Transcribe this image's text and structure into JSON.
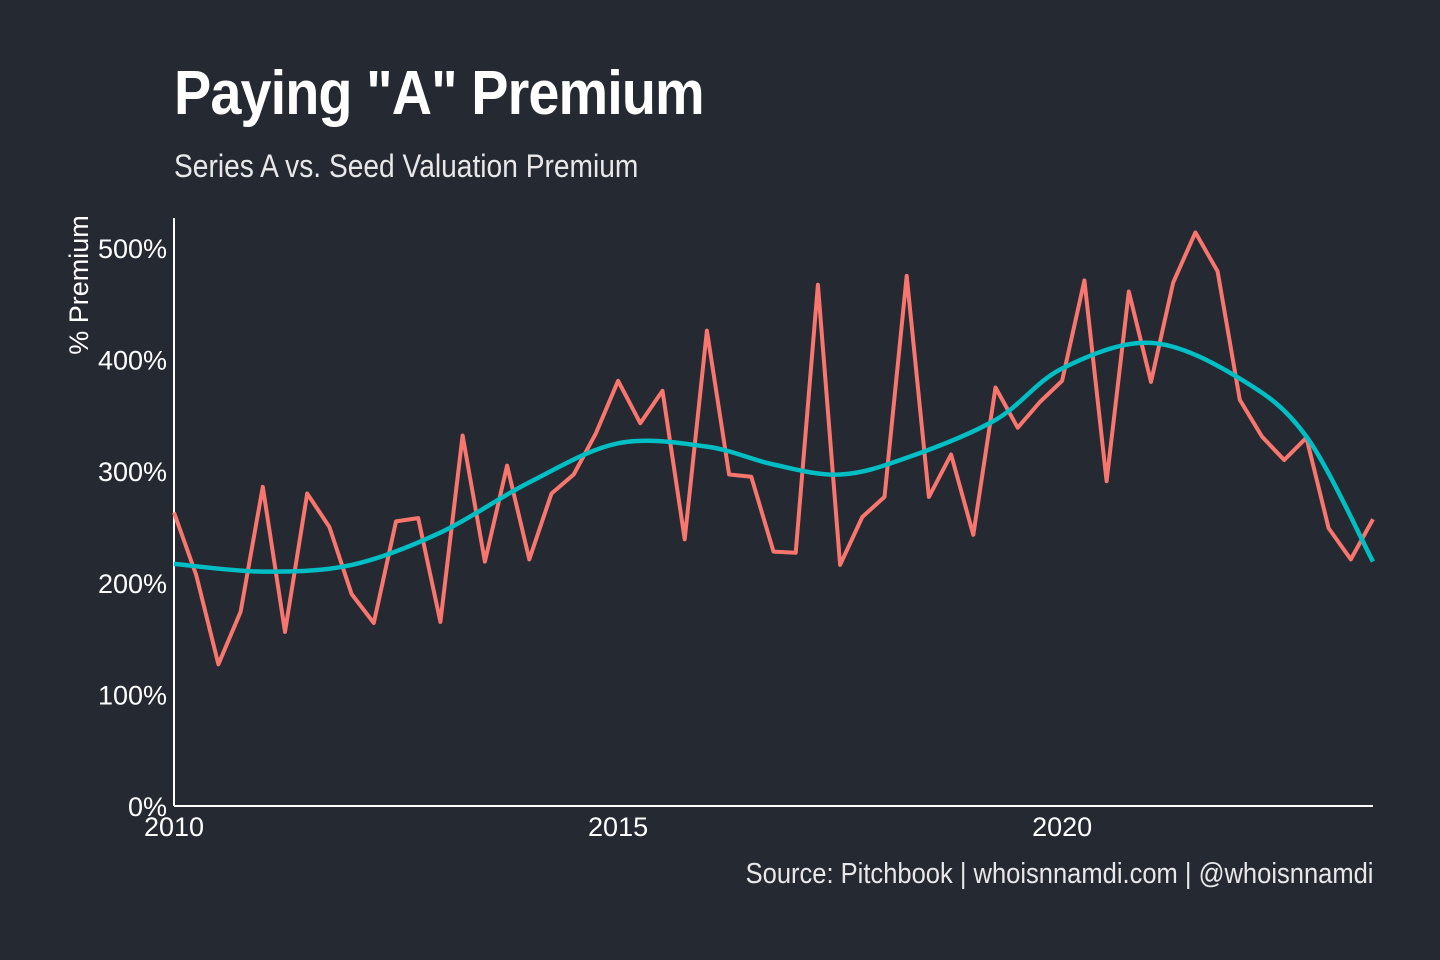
{
  "chart_data": {
    "type": "line",
    "title": "Paying \"A\" Premium",
    "subtitle": "Series A vs. Seed Valuation Premium",
    "caption": "Source: Pitchbook | whoisnnamdi.com | @whoisnnamdi",
    "xlabel": "",
    "ylabel": "% Premium",
    "xlim": [
      2010,
      2023.5
    ],
    "ylim": [
      0,
      500
    ],
    "xticks": [
      2010,
      2015,
      2020
    ],
    "xtick_labels": [
      "2010",
      "2015",
      "2020"
    ],
    "yticks": [
      0,
      100,
      200,
      300,
      400,
      500
    ],
    "ytick_labels": [
      "0%",
      "100%",
      "200%",
      "300%",
      "400%",
      "500%"
    ],
    "grid": false,
    "colors": {
      "background": "#252932",
      "series": "#f8766d",
      "trend": "#00bfc4"
    },
    "series": [
      {
        "x_start": 2010,
        "x_step": 0.25,
        "values": [
          263,
          207,
          127,
          174,
          286,
          156,
          280,
          250,
          190,
          164,
          255,
          258,
          165,
          332,
          219,
          305,
          221,
          280,
          297,
          334,
          381,
          343,
          372,
          239,
          426,
          297,
          295,
          228,
          227,
          467,
          216,
          259,
          277,
          475,
          277,
          315,
          243,
          375,
          339,
          362,
          381,
          471,
          291,
          461,
          380,
          469,
          514,
          479,
          364,
          331,
          310,
          330,
          249,
          221,
          257
        ]
      }
    ],
    "trend": {
      "x": [
        2010,
        2011,
        2012,
        2013,
        2014,
        2015,
        2016,
        2016.75,
        2017.5,
        2018.25,
        2019.25,
        2020,
        2021,
        2022,
        2022.75,
        2023.5
      ],
      "values": [
        217,
        210,
        216,
        245,
        290,
        325,
        322,
        306,
        297,
        312,
        346,
        392,
        415,
        383,
        331,
        219
      ]
    }
  }
}
